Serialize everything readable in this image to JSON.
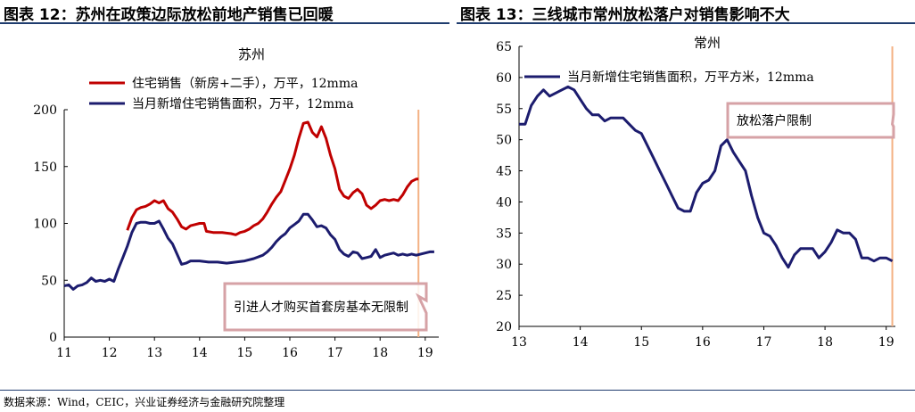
{
  "titles": {
    "left": "图表 12：苏州在政策边际放松前地产销售已回暖",
    "right": "图表 13：三线城市常州放松落户对销售影响不大"
  },
  "source": "数据来源：Wind，CEIC，兴业证券经济与金融研究院整理",
  "chart_data": [
    {
      "type": "line",
      "title": "苏州",
      "xlim": [
        11,
        19.3
      ],
      "ylim": [
        0,
        200
      ],
      "xticks": [
        11,
        12,
        13,
        14,
        15,
        16,
        17,
        18,
        19
      ],
      "xtick_labels": [
        "11",
        "12",
        "13",
        "14",
        "15",
        "16",
        "17",
        "18",
        "19"
      ],
      "yticks": [
        0,
        50,
        100,
        150,
        200
      ],
      "ytick_labels": [
        "0",
        "50",
        "100",
        "150",
        "200"
      ],
      "vline_x": 18.85,
      "annotation": {
        "text": "引进人才购买首套房基本无限制",
        "x": 18.85,
        "y": 36
      },
      "series": [
        {
          "name": "住宅销售（新房+二手），万平，12mma",
          "color": "#c00000",
          "x": [
            12.4,
            12.5,
            12.6,
            12.7,
            12.8,
            12.9,
            13.0,
            13.1,
            13.2,
            13.3,
            13.4,
            13.5,
            13.6,
            13.7,
            13.8,
            13.9,
            14.0,
            14.1,
            14.15,
            14.3,
            14.5,
            14.7,
            14.8,
            14.9,
            15.0,
            15.1,
            15.2,
            15.3,
            15.4,
            15.5,
            15.6,
            15.7,
            15.8,
            15.9,
            16.0,
            16.1,
            16.2,
            16.3,
            16.4,
            16.5,
            16.6,
            16.7,
            16.8,
            16.9,
            17.0,
            17.1,
            17.2,
            17.3,
            17.4,
            17.5,
            17.6,
            17.7,
            17.8,
            17.9,
            18.0,
            18.1,
            18.2,
            18.3,
            18.4,
            18.5,
            18.6,
            18.7,
            18.8,
            18.85
          ],
          "values": [
            94,
            105,
            112,
            114,
            115,
            117,
            120,
            118,
            120,
            113,
            110,
            104,
            97,
            95,
            98,
            99,
            100,
            100,
            93,
            92,
            92,
            91,
            90,
            92,
            93,
            95,
            98,
            100,
            104,
            110,
            117,
            123,
            128,
            138,
            148,
            160,
            175,
            188,
            189,
            180,
            176,
            185,
            175,
            160,
            148,
            130,
            124,
            122,
            127,
            130,
            126,
            116,
            113,
            116,
            120,
            121,
            120,
            121,
            120,
            125,
            132,
            137,
            139,
            139
          ]
        },
        {
          "name": "当月新增住宅销售面积，万平，12mma",
          "color": "#1c1c6e",
          "x": [
            11.0,
            11.1,
            11.2,
            11.3,
            11.4,
            11.5,
            11.6,
            11.7,
            11.8,
            11.9,
            12.0,
            12.1,
            12.2,
            12.3,
            12.4,
            12.5,
            12.6,
            12.7,
            12.8,
            12.9,
            13.0,
            13.1,
            13.2,
            13.3,
            13.4,
            13.5,
            13.6,
            13.7,
            13.8,
            13.9,
            14.0,
            14.2,
            14.4,
            14.6,
            14.8,
            15.0,
            15.2,
            15.4,
            15.5,
            15.6,
            15.7,
            15.8,
            15.9,
            16.0,
            16.1,
            16.2,
            16.3,
            16.4,
            16.5,
            16.6,
            16.7,
            16.8,
            16.9,
            17.0,
            17.1,
            17.2,
            17.3,
            17.4,
            17.5,
            17.6,
            17.7,
            17.8,
            17.9,
            18.0,
            18.1,
            18.2,
            18.3,
            18.4,
            18.5,
            18.6,
            18.7,
            18.8,
            18.9,
            19.0,
            19.1,
            19.2
          ],
          "values": [
            45,
            46,
            42,
            45,
            46,
            48,
            52,
            49,
            50,
            49,
            51,
            49,
            60,
            70,
            80,
            92,
            100,
            101,
            101,
            100,
            100,
            102,
            95,
            87,
            82,
            73,
            64,
            65,
            67,
            67,
            67,
            66,
            66,
            65,
            66,
            67,
            69,
            72,
            75,
            79,
            84,
            88,
            91,
            96,
            99,
            102,
            108,
            108,
            103,
            97,
            98,
            96,
            90,
            86,
            77,
            73,
            71,
            75,
            74,
            69,
            70,
            71,
            77,
            70,
            72,
            73,
            74,
            72,
            73,
            72,
            73,
            72,
            73,
            74,
            75,
            75
          ]
        }
      ]
    },
    {
      "type": "line",
      "title": "常州",
      "xlim": [
        13,
        19.15
      ],
      "ylim": [
        20,
        65
      ],
      "xticks": [
        13,
        14,
        15,
        16,
        17,
        18,
        19
      ],
      "xtick_labels": [
        "13",
        "14",
        "15",
        "16",
        "17",
        "18",
        "19"
      ],
      "yticks": [
        20,
        25,
        30,
        35,
        40,
        45,
        50,
        55,
        60,
        65
      ],
      "ytick_labels": [
        "20",
        "25",
        "30",
        "35",
        "40",
        "45",
        "50",
        "55",
        "60",
        "65"
      ],
      "vline_x": 19.1,
      "annotation": {
        "text": "放松落户限制",
        "x": 19.1,
        "y": 52.5
      },
      "series": [
        {
          "name": "当月新增住宅销售面积，万平方米，12mma",
          "color": "#1c1c6e",
          "x": [
            13.0,
            13.1,
            13.2,
            13.3,
            13.4,
            13.5,
            13.6,
            13.7,
            13.8,
            13.9,
            14.0,
            14.1,
            14.2,
            14.3,
            14.4,
            14.5,
            14.6,
            14.7,
            14.8,
            14.9,
            15.0,
            15.1,
            15.2,
            15.3,
            15.4,
            15.5,
            15.6,
            15.7,
            15.8,
            15.9,
            16.0,
            16.1,
            16.2,
            16.3,
            16.4,
            16.5,
            16.6,
            16.7,
            16.8,
            16.9,
            17.0,
            17.1,
            17.2,
            17.3,
            17.4,
            17.5,
            17.6,
            17.7,
            17.8,
            17.9,
            18.0,
            18.1,
            18.2,
            18.3,
            18.4,
            18.5,
            18.6,
            18.7,
            18.8,
            18.9,
            19.0,
            19.1
          ],
          "values": [
            52.5,
            52.5,
            55.5,
            57,
            58,
            57,
            57.5,
            58,
            58.5,
            58,
            56.5,
            55,
            54,
            54,
            53,
            53.5,
            53.5,
            53.5,
            52.5,
            51.5,
            51,
            49,
            47,
            45,
            43,
            41,
            39,
            38.5,
            38.5,
            41.5,
            43,
            43.5,
            45,
            49,
            50,
            48,
            46.5,
            45,
            41,
            37.5,
            35,
            34.5,
            33,
            31,
            29.5,
            31.5,
            32.5,
            32.5,
            32.5,
            31,
            32,
            33.5,
            35.5,
            35,
            35,
            34,
            31,
            31,
            30.5,
            31,
            31,
            30.5
          ]
        }
      ]
    }
  ]
}
